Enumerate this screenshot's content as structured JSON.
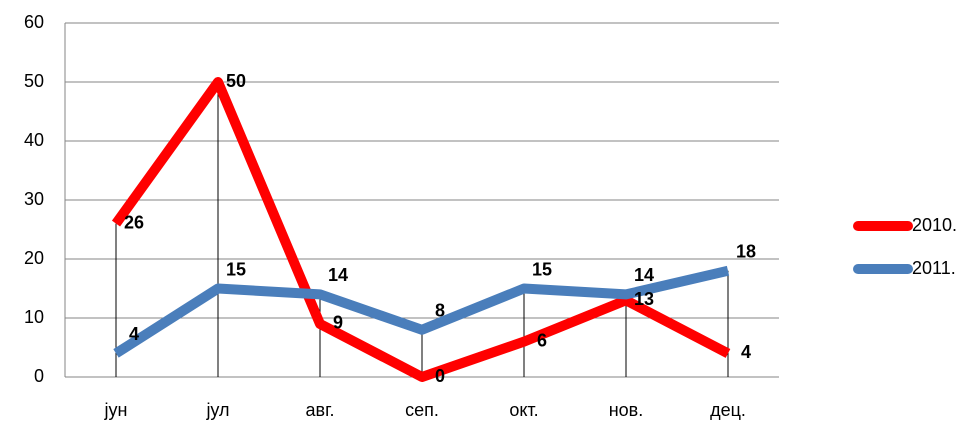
{
  "chart_data": {
    "type": "line",
    "categories": [
      "јун",
      "јул",
      "авг.",
      "сеп.",
      "окт.",
      "нов.",
      "дец."
    ],
    "series": [
      {
        "name": "2010.",
        "color": "#ff0000",
        "values": [
          26,
          50,
          9,
          0,
          6,
          13,
          4
        ]
      },
      {
        "name": "2011.",
        "color": "#4a7ebb",
        "values": [
          4,
          15,
          14,
          8,
          15,
          14,
          18
        ]
      }
    ],
    "ylim": [
      0,
      60
    ],
    "yticks": [
      0,
      10,
      20,
      30,
      40,
      50,
      60
    ],
    "grid": true,
    "legend": "right"
  }
}
